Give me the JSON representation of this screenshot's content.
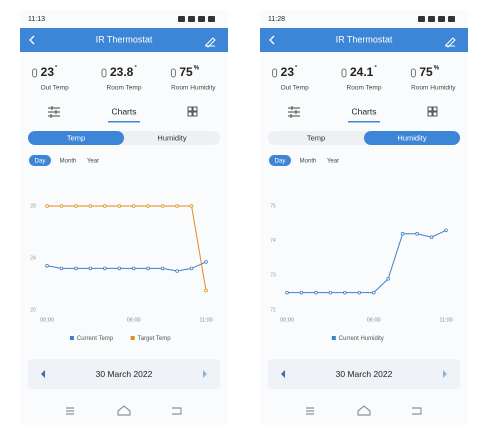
{
  "screens": [
    {
      "time": "11:13",
      "title": "IR Thermostat",
      "stats": [
        {
          "value": "23",
          "unit": "°",
          "label": "Out Temp"
        },
        {
          "value": "23.8",
          "unit": "°",
          "label": "Room Temp"
        },
        {
          "value": "75",
          "unit": "%",
          "label": "Room Humidity"
        }
      ],
      "tab": "Charts",
      "segments": [
        "Temp",
        "Humidity"
      ],
      "active_segment": 0,
      "periods": [
        "Day",
        "Month",
        "Year"
      ],
      "active_period": 0,
      "date": "30 March 2022"
    },
    {
      "time": "11:28",
      "title": "IR Thermostat",
      "stats": [
        {
          "value": "23",
          "unit": "°",
          "label": "Out Temp"
        },
        {
          "value": "24.1",
          "unit": "°",
          "label": "Room Temp"
        },
        {
          "value": "75",
          "unit": "%",
          "label": "Room Humidity"
        }
      ],
      "tab": "Charts",
      "segments": [
        "Temp",
        "Humidity"
      ],
      "active_segment": 1,
      "periods": [
        "Day",
        "Month",
        "Year"
      ],
      "active_period": 0,
      "date": "30 March 2022"
    }
  ],
  "chart_data": [
    {
      "type": "line",
      "x": [
        0,
        1,
        2,
        3,
        4,
        5,
        6,
        7,
        8,
        9,
        10,
        11
      ],
      "xlim": [
        0,
        11
      ],
      "xticks": [
        {
          "value": 0,
          "label": "00:00"
        },
        {
          "value": 6,
          "label": "06:00"
        },
        {
          "value": 11,
          "label": "11:00"
        }
      ],
      "ylim": [
        20,
        28
      ],
      "yticks": [
        20,
        24,
        28
      ],
      "grid": false,
      "series": [
        {
          "name": "Current Temp",
          "color": "#3f7fc8",
          "values": [
            23.4,
            23.2,
            23.2,
            23.2,
            23.2,
            23.2,
            23.2,
            23.2,
            23.2,
            23.0,
            23.2,
            23.7
          ]
        },
        {
          "name": "Target Temp",
          "color": "#e08d1c",
          "values": [
            28,
            28,
            28,
            28,
            28,
            28,
            28,
            28,
            28,
            28,
            28,
            21.5
          ]
        }
      ]
    },
    {
      "type": "line",
      "x": [
        0,
        1,
        2,
        3,
        4,
        5,
        6,
        7,
        8,
        9,
        10,
        11
      ],
      "xlim": [
        0,
        11
      ],
      "xticks": [
        {
          "value": 0,
          "label": "00:00"
        },
        {
          "value": 6,
          "label": "06:00"
        },
        {
          "value": 11,
          "label": "11:00"
        }
      ],
      "ylim": [
        72,
        75
      ],
      "yticks": [
        72,
        73,
        74,
        75
      ],
      "grid": false,
      "series": [
        {
          "name": "Current Humidity",
          "color": "#3f7fc8",
          "values": [
            72.5,
            72.5,
            72.5,
            72.5,
            72.5,
            72.5,
            72.5,
            72.9,
            74.2,
            74.2,
            74.1,
            74.3
          ]
        }
      ]
    }
  ]
}
